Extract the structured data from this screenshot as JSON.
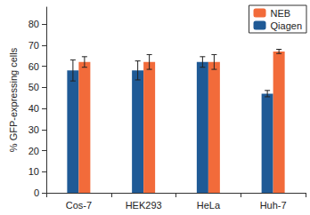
{
  "chart_data": {
    "type": "bar",
    "y_label": "% GFP-expressing cells",
    "categories": [
      "Cos-7",
      "HEK293",
      "HeLa",
      "Huh-7"
    ],
    "series": [
      {
        "name": "Qiagen",
        "color": "#1f5a96",
        "values": [
          58,
          58,
          62,
          47
        ],
        "errors": [
          5,
          4.5,
          2.5,
          1.5
        ]
      },
      {
        "name": "NEB",
        "color": "#f26b3a",
        "values": [
          62,
          62,
          62,
          67
        ],
        "errors": [
          2.5,
          3.5,
          3.5,
          1
        ]
      }
    ],
    "ylim": [
      0,
      88
    ],
    "yticks": [
      0,
      10,
      20,
      30,
      40,
      50,
      60,
      70,
      80
    ],
    "grid": false,
    "legend": "top-right"
  }
}
